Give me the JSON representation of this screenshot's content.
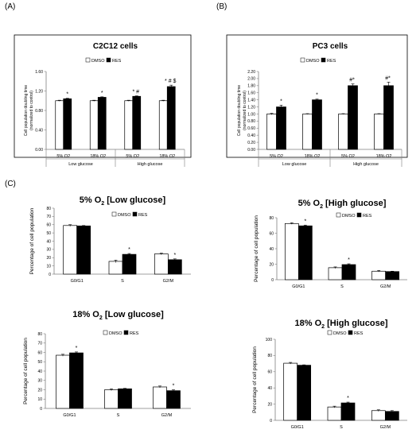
{
  "panel_labels": [
    "(A)",
    "(B)",
    "(C)"
  ],
  "legend": [
    "DMSO",
    "RES"
  ],
  "colors": {
    "dmso": "#ffffff",
    "res": "#000000",
    "axis": "#7f7f7f",
    "frame": "#000000"
  },
  "chart_data": [
    {
      "type": "bar",
      "title": "C2C12 cells",
      "ylabel": "Cell population doubling time (normalized to control)",
      "ylim": [
        0,
        1.6
      ],
      "yticks": [
        "0.00",
        "0.40",
        "0.80",
        "1.20",
        "1.60"
      ],
      "categories": [
        "5% O2",
        "18% O2",
        "5% O2",
        "18% O2"
      ],
      "groups": [
        "Low glucose",
        "High glucose"
      ],
      "series": [
        {
          "name": "DMSO",
          "values": [
            1.0,
            1.0,
            1.0,
            1.0
          ],
          "errors": [
            0.01,
            0.01,
            0.01,
            0.01
          ]
        },
        {
          "name": "RES",
          "values": [
            1.04,
            1.07,
            1.09,
            1.29
          ],
          "errors": [
            0.01,
            0.01,
            0.01,
            0.03
          ]
        }
      ],
      "annotations": [
        "*",
        "*",
        "* #",
        "* # $"
      ]
    },
    {
      "type": "bar",
      "title": "PC3 cells",
      "ylabel": "Cell population doubling time (normalized to control)",
      "ylim": [
        0,
        2.2
      ],
      "yticks": [
        "0.00",
        "0.20",
        "0.40",
        "0.60",
        "0.80",
        "1.00",
        "1.20",
        "1.40",
        "1.60",
        "1.80",
        "2.00",
        "2.20"
      ],
      "categories": [
        "5% O2",
        "18% O2",
        "5% O2",
        "18% O2"
      ],
      "groups": [
        "Low glucose",
        "High glucose"
      ],
      "series": [
        {
          "name": "DMSO",
          "values": [
            1.0,
            1.0,
            1.0,
            1.0
          ],
          "errors": [
            0.02,
            0.01,
            0.01,
            0.01
          ]
        },
        {
          "name": "RES",
          "values": [
            1.2,
            1.4,
            1.8,
            1.8
          ],
          "errors": [
            0.05,
            0.02,
            0.05,
            0.1
          ]
        }
      ],
      "annotations": [
        "*",
        "*",
        "#*",
        "#*"
      ]
    },
    {
      "type": "bar",
      "title_main": "5% O",
      "title_sub": "2",
      "title_tail": " [Low glucose]",
      "ylabel": "Percentage of cell population",
      "ylim": [
        0,
        80
      ],
      "yticks": [
        "0",
        "10",
        "20",
        "30",
        "40",
        "50",
        "60",
        "70",
        "80"
      ],
      "categories": [
        "G0/G1",
        "S",
        "G2/M"
      ],
      "series": [
        {
          "name": "DMSO",
          "values": [
            59,
            15.5,
            24.5
          ],
          "errors": [
            1,
            1.5,
            1
          ]
        },
        {
          "name": "RES",
          "values": [
            58.5,
            24,
            17.5
          ],
          "errors": [
            0.5,
            1,
            1
          ]
        }
      ],
      "annotations": [
        "",
        "*",
        "*"
      ]
    },
    {
      "type": "bar",
      "title_main": "5% O",
      "title_sub": "2",
      "title_tail": " [High glucose]",
      "ylabel": "Percentage of cell population",
      "ylim": [
        0,
        80
      ],
      "yticks": [
        "0",
        "20",
        "40",
        "60",
        "80"
      ],
      "categories": [
        "G0/G1",
        "S",
        "G2/M"
      ],
      "series": [
        {
          "name": "DMSO",
          "values": [
            72.5,
            15.5,
            11
          ],
          "errors": [
            1,
            1,
            1
          ]
        },
        {
          "name": "RES",
          "values": [
            69.5,
            19.5,
            10.5
          ],
          "errors": [
            1,
            1,
            0.5
          ]
        }
      ],
      "annotations": [
        "*",
        "*",
        ""
      ]
    },
    {
      "type": "bar",
      "title_main": "18% O",
      "title_sub": "2",
      "title_tail": " [Low glucose]",
      "ylabel": "Percentage of cell population",
      "ylim": [
        0,
        80
      ],
      "yticks": [
        "0",
        "10",
        "20",
        "30",
        "40",
        "50",
        "60",
        "70",
        "80"
      ],
      "categories": [
        "G0/G1",
        "S",
        "G2/M"
      ],
      "series": [
        {
          "name": "DMSO",
          "values": [
            57,
            20,
            23
          ],
          "errors": [
            1,
            1,
            1
          ]
        },
        {
          "name": "RES",
          "values": [
            59.5,
            21,
            19
          ],
          "errors": [
            1,
            0.5,
            1
          ]
        }
      ],
      "annotations": [
        "*",
        "",
        "*"
      ]
    },
    {
      "type": "bar",
      "title_main": "18% O",
      "title_sub": "2",
      "title_tail": " [High glucose]",
      "ylabel": "Percentage of cell population",
      "ylim": [
        0,
        100
      ],
      "yticks": [
        "0",
        "20",
        "40",
        "60",
        "80",
        "100"
      ],
      "categories": [
        "G0/G1",
        "S",
        "G2/M"
      ],
      "series": [
        {
          "name": "DMSO",
          "values": [
            70.5,
            16.5,
            12
          ],
          "errors": [
            1,
            1,
            1
          ]
        },
        {
          "name": "RES",
          "values": [
            68,
            21.5,
            11
          ],
          "errors": [
            0.5,
            1,
            1
          ]
        }
      ],
      "annotations": [
        "",
        "*",
        ""
      ]
    }
  ]
}
